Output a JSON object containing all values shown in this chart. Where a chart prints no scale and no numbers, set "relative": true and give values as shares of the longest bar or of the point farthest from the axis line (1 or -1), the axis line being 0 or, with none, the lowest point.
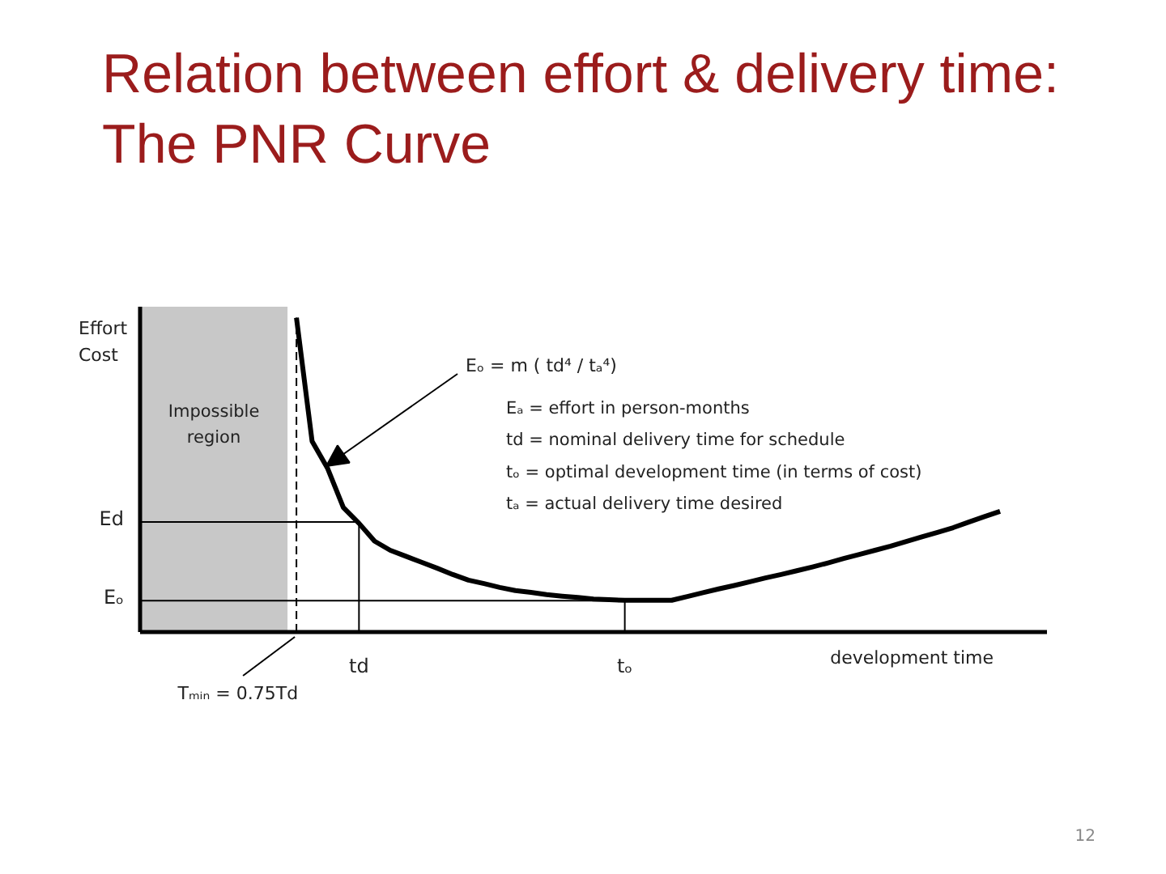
{
  "chart_data": {
    "type": "line",
    "title": "Relation between effort & delivery time:\nThe PNR Curve",
    "xlabel": "development time",
    "ylabel": "Effort Cost",
    "relative": true,
    "categories": [
      null,
      null,
      null,
      null,
      null,
      null,
      null,
      null,
      null,
      null,
      null,
      null,
      null,
      null,
      "td",
      null,
      null,
      null,
      null,
      null,
      null,
      null,
      null,
      null,
      null,
      null,
      null,
      null,
      null,
      null,
      null,
      "tₒ",
      null,
      null,
      null,
      null,
      null,
      null,
      null,
      null,
      null,
      null,
      null,
      null,
      null,
      null,
      null,
      null,
      null,
      null,
      null,
      null,
      null,
      null,
      null,
      null,
      null,
      null,
      null
    ],
    "series": [
      {
        "color": "#000000",
        "values": [
          null,
          null,
          null,
          null,
          null,
          null,
          null,
          null,
          null,
          null,
          1.0,
          0.607,
          0.52,
          0.396,
          0.346,
          0.289,
          0.26,
          0.241,
          0.222,
          0.203,
          0.183,
          0.165,
          0.154,
          0.142,
          0.132,
          0.126,
          0.119,
          0.114,
          0.11,
          0.105,
          0.103,
          0.101,
          0.101,
          0.101,
          0.101,
          0.113,
          0.125,
          0.137,
          0.148,
          0.16,
          0.172,
          0.183,
          0.195,
          0.207,
          0.22,
          0.234,
          0.247,
          0.26,
          0.273,
          0.288,
          0.303,
          0.317,
          0.332,
          0.35,
          0.367,
          0.384,
          null,
          null,
          null
        ]
      }
    ],
    "ref_lines": [
      {
        "axis": "x",
        "value": "td"
      },
      {
        "axis": "x",
        "value": "tₒ"
      },
      {
        "axis": "y",
        "value": 0.35,
        "label": "Ed"
      },
      {
        "axis": "y",
        "value": 0.1,
        "label": "Eₒ"
      }
    ],
    "annotations": [
      "Eₒ = m ( td⁴ / tₐ⁴)",
      "Impossible region",
      "Eₐ = effort in person-months",
      "td = nominal delivery time for schedule",
      "tₒ = optimal development time (in terms of cost)",
      "tₐ = actual delivery time desired",
      "Tₘᵢₙ = 0.75Td",
      "12"
    ]
  }
}
